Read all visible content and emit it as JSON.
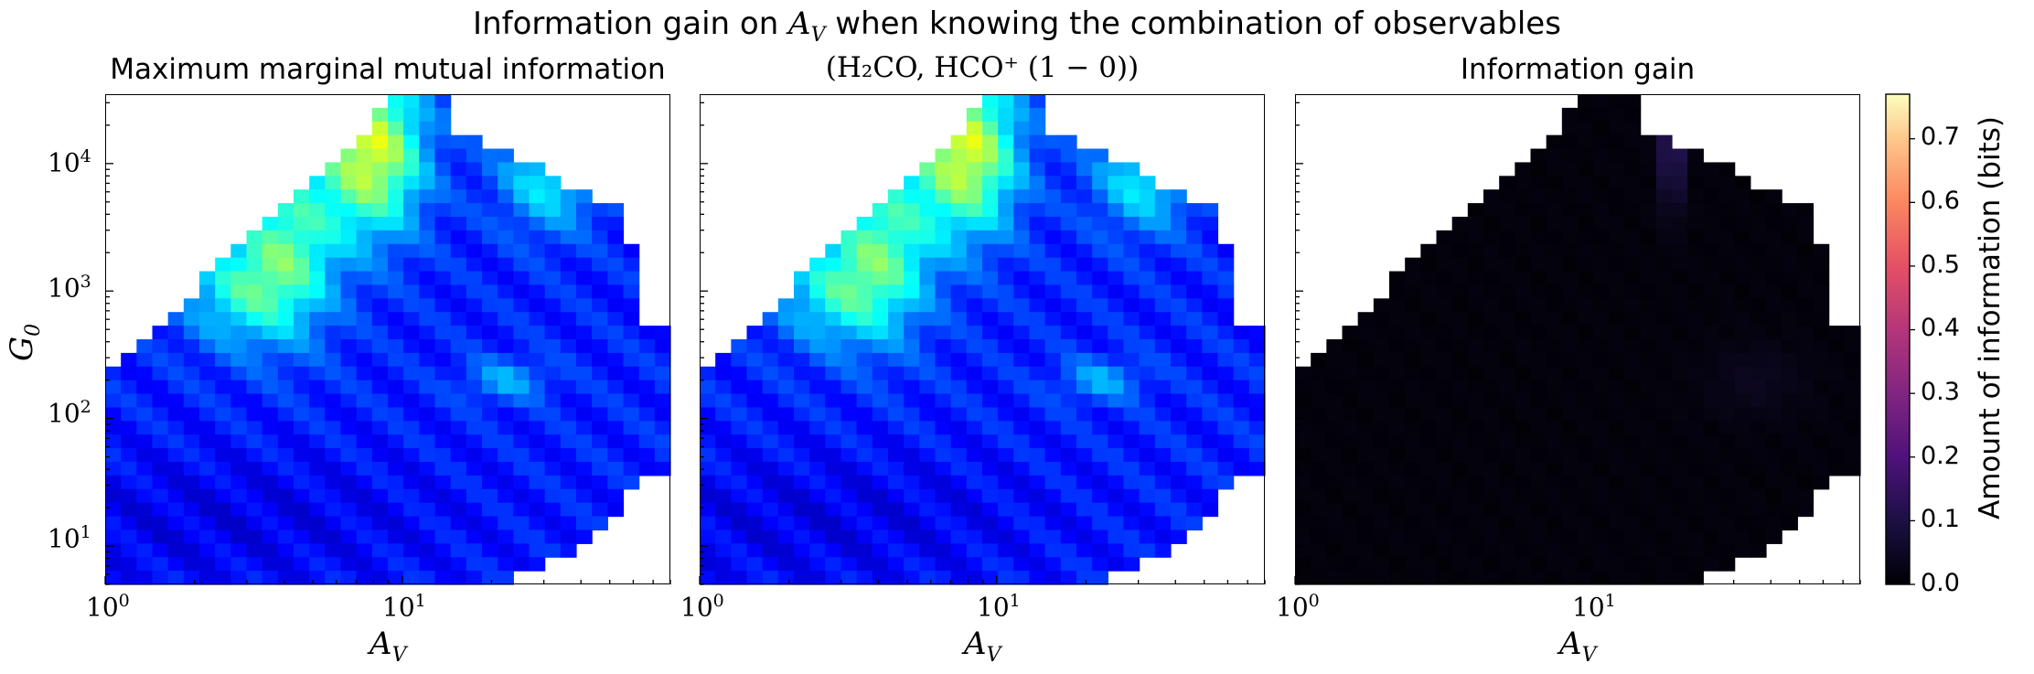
{
  "figure": {
    "suptitle": "Information gain on A_V when knowing the combination of observables",
    "suptitle_display": "Information gain on 𝐴𝑉 when knowing the combination of observables"
  },
  "chart_data": [
    {
      "type": "heatmap",
      "title": "Maximum marginal mutual information",
      "xlabel": "A_V",
      "ylabel": "G_0",
      "xscale": "log",
      "yscale": "log",
      "xlim": [
        1,
        80
      ],
      "ylim": [
        5,
        35000
      ],
      "xticks": [
        "10^0",
        "10^1"
      ],
      "yticks": [
        "10^1",
        "10^2",
        "10^3",
        "10^4"
      ],
      "colormap": "jet",
      "value_range": [
        0,
        0.77
      ],
      "approx_peak": {
        "A_V": 8,
        "G_0": 15000,
        "value": 0.45
      }
    },
    {
      "type": "heatmap",
      "title": "(H2CO, HCO+ (1 - 0))",
      "xlabel": "A_V",
      "xscale": "log",
      "yscale": "log",
      "xlim": [
        1,
        80
      ],
      "ylim": [
        5,
        35000
      ],
      "xticks": [
        "10^0",
        "10^1"
      ],
      "colormap": "jet",
      "value_range": [
        0,
        0.77
      ],
      "approx_peak": {
        "A_V": 8,
        "G_0": 15000,
        "value": 0.45
      }
    },
    {
      "type": "heatmap",
      "title": "Information gain",
      "xlabel": "A_V",
      "xscale": "log",
      "yscale": "log",
      "xlim": [
        1,
        80
      ],
      "ylim": [
        5,
        35000
      ],
      "xticks": [
        "10^0",
        "10^1"
      ],
      "colormap": "magma",
      "value_range": [
        0,
        0.77
      ],
      "approx_peak": {
        "A_V": 18,
        "G_0": 20000,
        "value": 0.15
      }
    }
  ],
  "colorbar": {
    "label": "Amount of information (bits)",
    "ticks": [
      "0.0",
      "0.1",
      "0.2",
      "0.3",
      "0.4",
      "0.5",
      "0.6",
      "0.7"
    ],
    "range": [
      0,
      0.77
    ],
    "colormap": "magma"
  },
  "labels": {
    "xlabel_display": "A",
    "xlabel_sub": "V",
    "ylabel_display": "G",
    "ylabel_sub": "0",
    "panel2_title_display": "(H₂CO, HCO⁺ (1 − 0))",
    "tick_10": "10",
    "exp_0": "0",
    "exp_1": "1",
    "exp_2": "2",
    "exp_3": "3",
    "exp_4": "4"
  }
}
